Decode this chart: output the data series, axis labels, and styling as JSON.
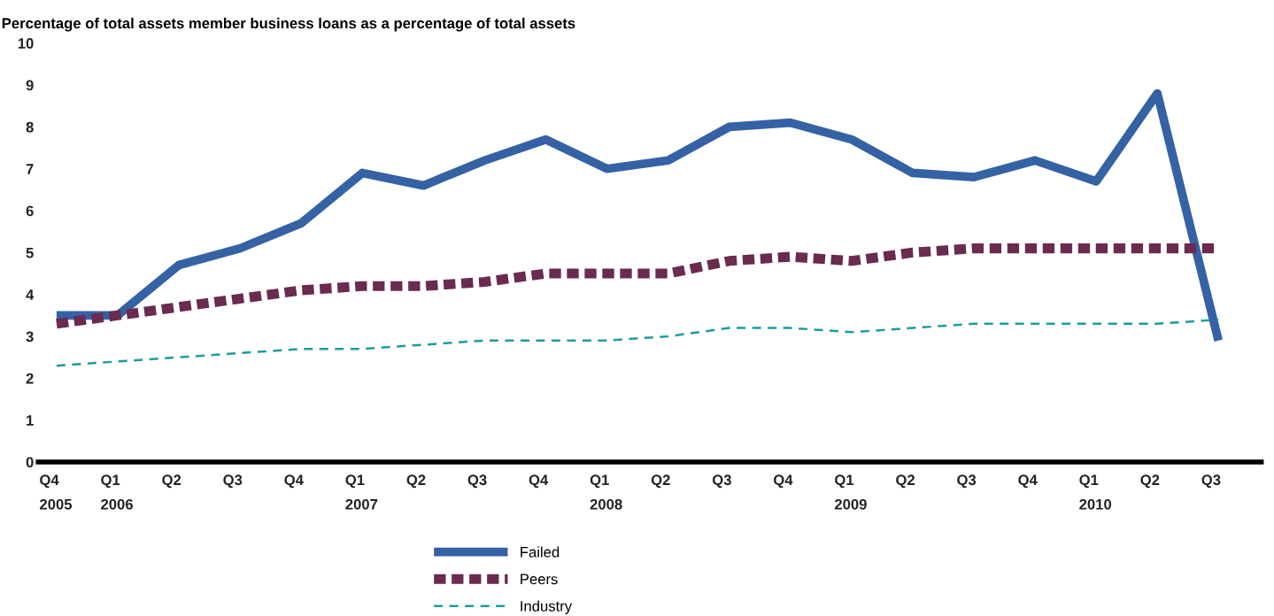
{
  "chart_data": {
    "type": "line",
    "title": "Percentage of total assets member business loans as a percentage of total assets",
    "categories": [
      "Q4\n2005",
      "Q1\n2006",
      "Q2",
      "Q3",
      "Q4",
      "Q1\n2007",
      "Q2",
      "Q3",
      "Q4",
      "Q1\n2008",
      "Q2",
      "Q3",
      "Q4",
      "Q1\n2009",
      "Q2",
      "Q3",
      "Q4",
      "Q1\n2010",
      "Q2",
      "Q3"
    ],
    "series": [
      {
        "name": "Failed",
        "color": "#3462a5",
        "line_style": "solid",
        "values": [
          3.5,
          3.5,
          4.7,
          5.1,
          5.7,
          6.9,
          6.6,
          7.2,
          7.7,
          7.0,
          7.2,
          8.0,
          8.1,
          7.7,
          6.9,
          6.8,
          7.2,
          6.7,
          8.8,
          2.9
        ]
      },
      {
        "name": "Peers",
        "color": "#6b2a4f",
        "line_style": "dashed",
        "values": [
          3.3,
          3.5,
          3.7,
          3.9,
          4.1,
          4.2,
          4.2,
          4.3,
          4.5,
          4.5,
          4.5,
          4.8,
          4.9,
          4.8,
          5.0,
          5.1,
          5.1,
          5.1,
          5.1,
          5.1
        ]
      },
      {
        "name": "Industry",
        "color": "#1a9e9e",
        "line_style": "dashed",
        "values": [
          2.3,
          2.4,
          2.5,
          2.6,
          2.7,
          2.7,
          2.8,
          2.9,
          2.9,
          2.9,
          3.0,
          3.2,
          3.2,
          3.1,
          3.2,
          3.3,
          3.3,
          3.3,
          3.3,
          3.4
        ]
      }
    ],
    "ylim": [
      0,
      10
    ],
    "yticks": [
      0,
      1,
      2,
      3,
      4,
      5,
      6,
      7,
      8,
      9,
      10
    ],
    "grid": false,
    "legend": "bottom",
    "marker": "none"
  }
}
